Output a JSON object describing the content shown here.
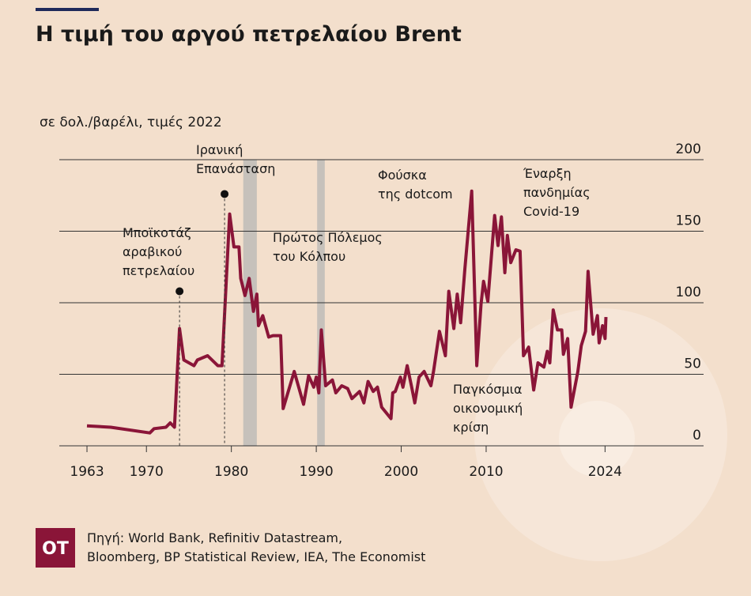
{
  "chart_data": {
    "type": "line",
    "title": "Η τιμή του αργού πετρελαίου Brent",
    "subtitle": "σε δολ./βαρέλι, τιμές 2022",
    "x": [
      1963.0,
      1965.8,
      1970.4,
      1970.9,
      1972.3,
      1972.8,
      1973.3,
      1973.9,
      1974.4,
      1975.6,
      1976.0,
      1977.2,
      1978.4,
      1978.9,
      1979.8,
      1980.3,
      1980.9,
      1981.1,
      1981.6,
      1982.1,
      1982.6,
      1983.0,
      1983.2,
      1983.7,
      1984.4,
      1984.9,
      1985.8,
      1986.1,
      1987.4,
      1988.5,
      1989.1,
      1989.7,
      1990.0,
      1990.3,
      1990.6,
      1991.1,
      1991.9,
      1992.3,
      1993.0,
      1993.7,
      1994.2,
      1995.1,
      1995.6,
      1996.1,
      1996.7,
      1997.2,
      1997.7,
      1998.8,
      1999.0,
      1999.3,
      1999.9,
      2000.2,
      2000.7,
      2001.2,
      2001.6,
      2002.1,
      2002.7,
      2003.5,
      2003.8,
      2004.5,
      2005.2,
      2005.6,
      2006.2,
      2006.6,
      2007.0,
      2007.5,
      2008.3,
      2008.9,
      2009.4,
      2009.7,
      2010.2,
      2011.0,
      2011.4,
      2011.8,
      2012.2,
      2012.5,
      2012.9,
      2013.5,
      2014.0,
      2014.4,
      2015.0,
      2015.6,
      2016.1,
      2016.8,
      2017.2,
      2017.5,
      2017.9,
      2018.4,
      2018.9,
      2019.1,
      2019.6,
      2020.0,
      2020.8,
      2021.2,
      2021.7,
      2022.0,
      2022.6,
      2023.1,
      2023.3,
      2023.7,
      2024.0,
      2024.1
    ],
    "values": [
      14,
      13,
      9,
      12,
      13,
      16,
      13,
      82,
      60,
      56,
      60,
      63,
      56,
      56,
      162,
      139,
      139,
      117,
      105,
      117,
      94,
      106,
      84,
      91,
      76,
      77,
      77,
      26,
      52,
      29,
      49,
      41,
      48,
      37,
      81,
      42,
      46,
      37,
      42,
      40,
      33,
      38,
      30,
      45,
      38,
      41,
      27,
      19,
      37,
      38,
      48,
      41,
      56,
      42,
      30,
      48,
      52,
      42,
      52,
      80,
      63,
      108,
      82,
      106,
      86,
      124,
      178,
      56,
      99,
      115,
      101,
      161,
      140,
      160,
      121,
      147,
      128,
      137,
      136,
      63,
      69,
      39,
      58,
      55,
      66,
      58,
      95,
      81,
      81,
      64,
      75,
      27,
      52,
      70,
      80,
      122,
      78,
      91,
      72,
      84,
      75,
      90
    ],
    "color": "#8a1538",
    "xlim": [
      1959.74,
      2035.6
    ],
    "ylim": [
      0,
      200
    ],
    "xticks": [
      1963,
      1970,
      1980,
      1990,
      2000,
      2010,
      2024
    ],
    "yticks": [
      0,
      50,
      100,
      150,
      200
    ],
    "grid": true,
    "shaded_periods": [
      [
        1981.4,
        1983.0
      ],
      [
        1990.1,
        1991.0
      ]
    ],
    "annotations": [
      {
        "text": [
          "Μποϊκοτάζ",
          "αραβικού",
          "πετρελαίου"
        ],
        "x": 1973.9,
        "y": 108
      },
      {
        "text": [
          "Ιρανική",
          "Επανάσταση"
        ],
        "x": 1979.2,
        "y": 176
      },
      {
        "text": [
          "Πρώτος Πόλεμος",
          "του Κόλπου"
        ]
      },
      {
        "text": [
          "Φούσκα",
          "της dotcom"
        ]
      },
      {
        "text": [
          "Έναρξη",
          "πανδημίας",
          "Covid-19"
        ]
      },
      {
        "text": [
          "Παγκόσμια",
          "οικονομική",
          "κρίση"
        ]
      }
    ]
  },
  "footer": {
    "logo": "OT",
    "source": [
      "Πηγή: World Bank, Refinitiv Datastream,",
      "Bloomberg, BP Statistical Review, IEA, The Economist"
    ]
  }
}
